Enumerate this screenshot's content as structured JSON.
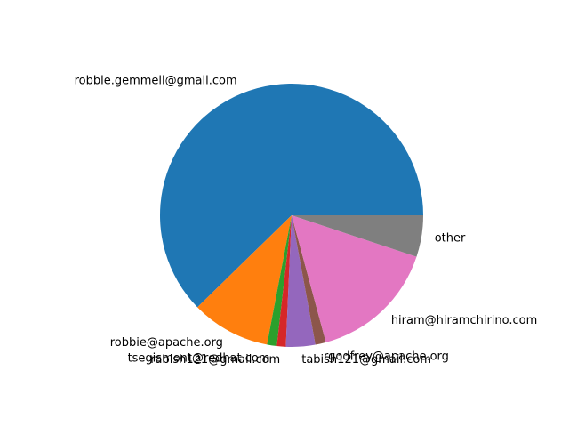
{
  "chart_data": {
    "type": "pie",
    "title": "",
    "start_angle_deg": 0,
    "direction": "counterclockwise",
    "slices": [
      {
        "label": "robbie.gemmell@gmail.com",
        "value": 62.3,
        "color": "#1f77b4"
      },
      {
        "label": "robbie@apache.org",
        "value": 9.7,
        "color": "#ff7f0e"
      },
      {
        "label": "tsegismont@redhat.com",
        "value": 1.2,
        "color": "#2ca02c"
      },
      {
        "label": "rabish121@gmail.com",
        "value": 1.1,
        "color": "#d62728"
      },
      {
        "label": "tabish121@gmail.com",
        "value": 3.6,
        "color": "#9467bd"
      },
      {
        "label": "rgodfrey@apache.org",
        "value": 1.3,
        "color": "#8c564b"
      },
      {
        "label": "hiram@hiramchirino.com",
        "value": 15.7,
        "color": "#e377c2"
      },
      {
        "label": "other",
        "value": 5.1,
        "color": "#7f7f7f"
      }
    ]
  }
}
